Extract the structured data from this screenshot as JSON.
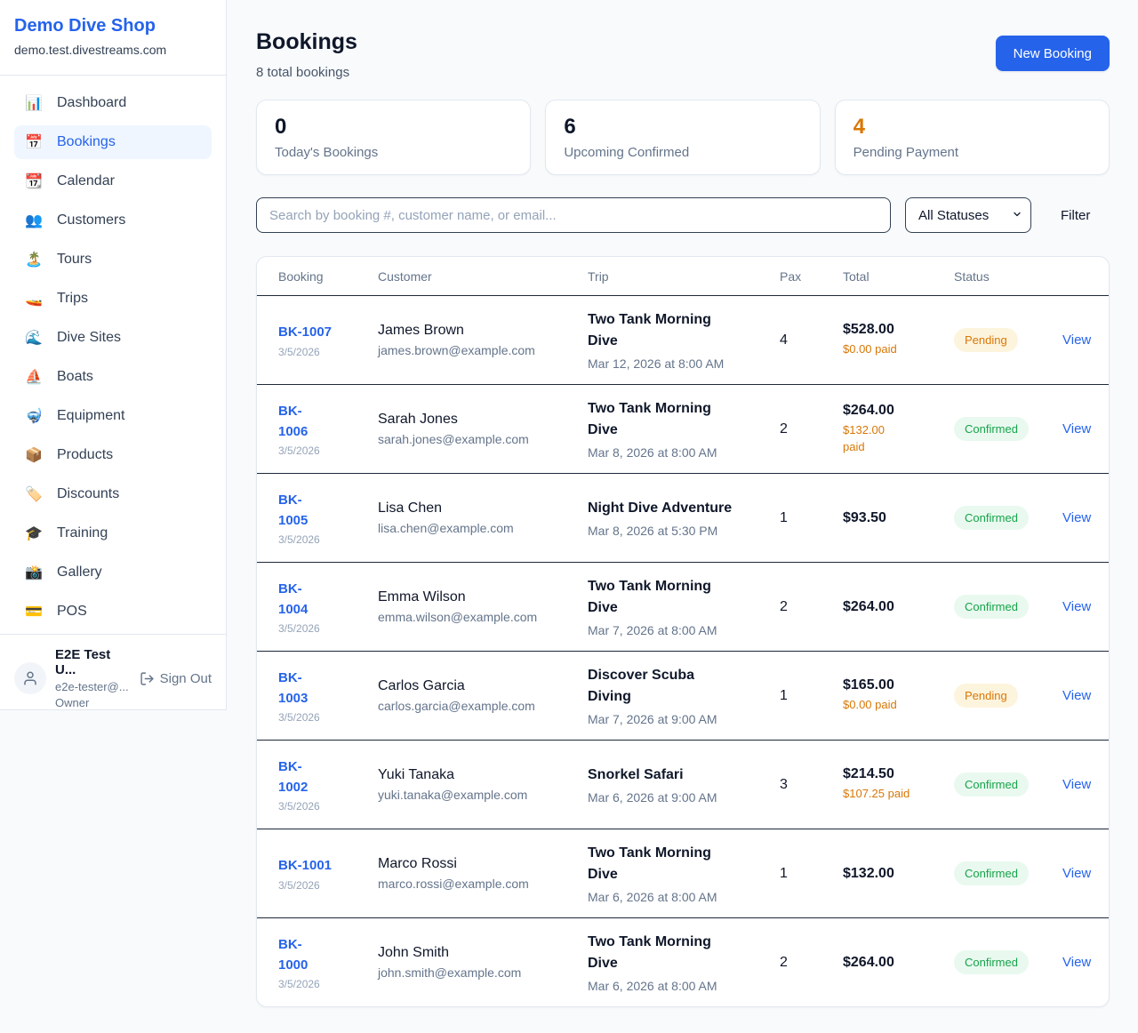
{
  "colors": {
    "brand_blue": "#2563eb",
    "pending_orange": "#d97706",
    "confirmed_green": "#16a34a",
    "pending_badge_bg": "#fdf4dd",
    "confirmed_badge_bg": "#e9f9ef",
    "page_bg": "#f8fafc"
  },
  "sidebar": {
    "brand": {
      "name": "Demo Dive Shop",
      "domain": "demo.test.divestreams.com"
    },
    "nav": [
      {
        "icon": "📊",
        "label": "Dashboard",
        "active": false
      },
      {
        "icon": "📅",
        "label": "Bookings",
        "active": true
      },
      {
        "icon": "📆",
        "label": "Calendar",
        "active": false
      },
      {
        "icon": "👥",
        "label": "Customers",
        "active": false
      },
      {
        "icon": "🏝️",
        "label": "Tours",
        "active": false
      },
      {
        "icon": "🚤",
        "label": "Trips",
        "active": false
      },
      {
        "icon": "🌊",
        "label": "Dive Sites",
        "active": false
      },
      {
        "icon": "⛵",
        "label": "Boats",
        "active": false
      },
      {
        "icon": "🤿",
        "label": "Equipment",
        "active": false
      },
      {
        "icon": "📦",
        "label": "Products",
        "active": false
      },
      {
        "icon": "🏷️",
        "label": "Discounts",
        "active": false
      },
      {
        "icon": "🎓",
        "label": "Training",
        "active": false
      },
      {
        "icon": "📸",
        "label": "Gallery",
        "active": false
      },
      {
        "icon": "💳",
        "label": "POS",
        "active": false
      }
    ],
    "user": {
      "name": "E2E Test U...",
      "email": "e2e-tester@...",
      "role": "Owner",
      "sign_out_label": "Sign Out"
    }
  },
  "header": {
    "title": "Bookings",
    "subtitle": "8 total bookings",
    "new_booking_label": "New Booking"
  },
  "stats": [
    {
      "value": "0",
      "label": "Today's Bookings"
    },
    {
      "value": "6",
      "label": "Upcoming Confirmed"
    },
    {
      "value": "4",
      "label": "Pending Payment"
    }
  ],
  "controls": {
    "search_placeholder": "Search by booking #, customer name, or email...",
    "status_filter_value": "All Statuses",
    "filter_label": "Filter"
  },
  "table": {
    "columns": [
      "Booking",
      "Customer",
      "Trip",
      "Pax",
      "Total",
      "Status"
    ],
    "view_label": "View",
    "rows": [
      {
        "number": "BK-1007",
        "date": "3/5/2026",
        "customer": "James Brown",
        "email": "james.brown@example.com",
        "trip": "Two Tank Morning\nDive",
        "trip_datetime": "Mar 12, 2026 at 8:00 AM",
        "pax": "4",
        "total": "$528.00",
        "paid": "$0.00 paid",
        "status": "Pending"
      },
      {
        "number": "BK-\n1006",
        "date": "3/5/2026",
        "customer": "Sarah Jones",
        "email": "sarah.jones@example.com",
        "trip": "Two Tank Morning\nDive",
        "trip_datetime": "Mar 8, 2026 at 8:00 AM",
        "pax": "2",
        "total": "$264.00",
        "paid": "$132.00\npaid",
        "status": "Confirmed"
      },
      {
        "number": "BK-\n1005",
        "date": "3/5/2026",
        "customer": "Lisa Chen",
        "email": "lisa.chen@example.com",
        "trip": "Night Dive Adventure",
        "trip_datetime": "Mar 8, 2026 at 5:30 PM",
        "pax": "1",
        "total": "$93.50",
        "paid": null,
        "status": "Confirmed"
      },
      {
        "number": "BK-\n1004",
        "date": "3/5/2026",
        "customer": "Emma Wilson",
        "email": "emma.wilson@example.com",
        "trip": "Two Tank Morning\nDive",
        "trip_datetime": "Mar 7, 2026 at 8:00 AM",
        "pax": "2",
        "total": "$264.00",
        "paid": null,
        "status": "Confirmed"
      },
      {
        "number": "BK-\n1003",
        "date": "3/5/2026",
        "customer": "Carlos Garcia",
        "email": "carlos.garcia@example.com",
        "trip": "Discover Scuba\nDiving",
        "trip_datetime": "Mar 7, 2026 at 9:00 AM",
        "pax": "1",
        "total": "$165.00",
        "paid": "$0.00 paid",
        "status": "Pending"
      },
      {
        "number": "BK-\n1002",
        "date": "3/5/2026",
        "customer": "Yuki Tanaka",
        "email": "yuki.tanaka@example.com",
        "trip": "Snorkel Safari",
        "trip_datetime": "Mar 6, 2026 at 9:00 AM",
        "pax": "3",
        "total": "$214.50",
        "paid": "$107.25 paid",
        "status": "Confirmed"
      },
      {
        "number": "BK-1001",
        "date": "3/5/2026",
        "customer": "Marco Rossi",
        "email": "marco.rossi@example.com",
        "trip": "Two Tank Morning\nDive",
        "trip_datetime": "Mar 6, 2026 at 8:00 AM",
        "pax": "1",
        "total": "$132.00",
        "paid": null,
        "status": "Confirmed"
      },
      {
        "number": "BK-\n1000",
        "date": "3/5/2026",
        "customer": "John Smith",
        "email": "john.smith@example.com",
        "trip": "Two Tank Morning\nDive",
        "trip_datetime": "Mar 6, 2026 at 8:00 AM",
        "pax": "2",
        "total": "$264.00",
        "paid": null,
        "status": "Confirmed"
      }
    ]
  }
}
